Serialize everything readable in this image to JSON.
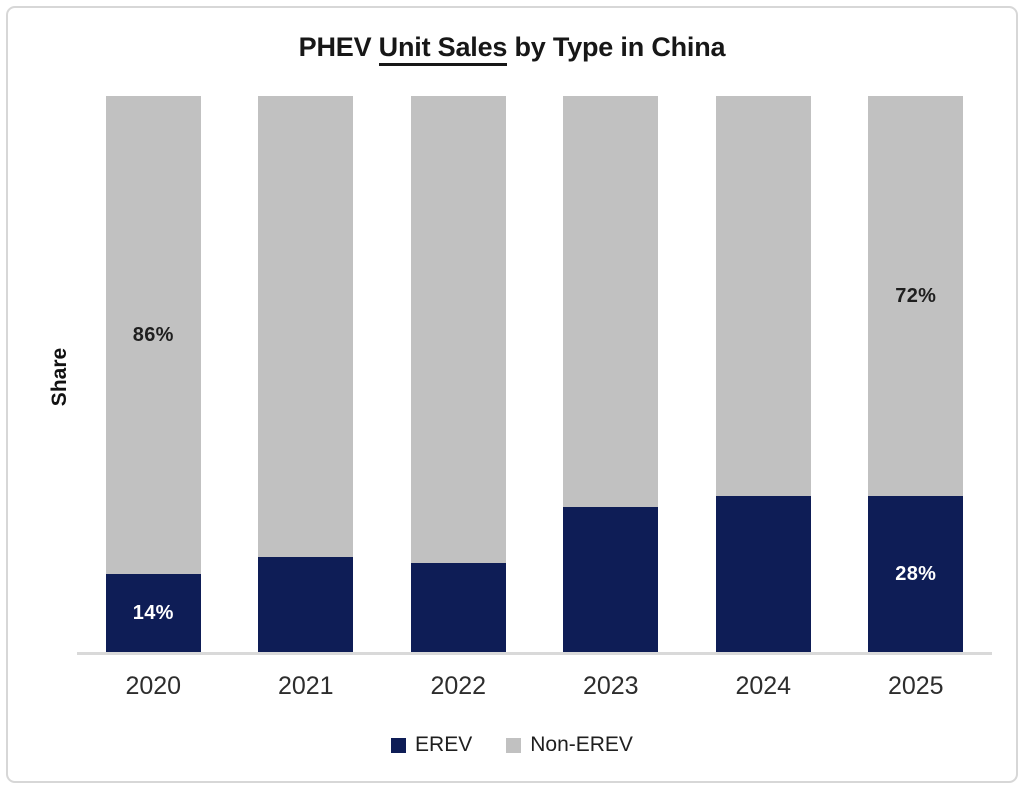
{
  "title": {
    "pre": "PHEV",
    "underline": "Unit Sales",
    "post": "by Type in China"
  },
  "chart_data": {
    "type": "bar",
    "stacked": true,
    "title": "PHEV Unit Sales by Type in China",
    "title_underlined_part": "Unit Sales",
    "categories": [
      "2020",
      "2021",
      "2022",
      "2023",
      "2024",
      "2025"
    ],
    "series": [
      {
        "name": "EREV",
        "color": "#0e1d56",
        "label_color": "#ffffff",
        "values": [
          14,
          17,
          16,
          26,
          28,
          28
        ],
        "labels": [
          "14%",
          "",
          "",
          "",
          "",
          "28%"
        ]
      },
      {
        "name": "Non-EREV",
        "color": "#c1c1c1",
        "label_color": "#1f1f1f",
        "values": [
          86,
          83,
          84,
          74,
          72,
          72
        ],
        "labels": [
          "86%",
          "",
          "",
          "",
          "",
          "72%"
        ]
      }
    ],
    "xlabel": "",
    "ylabel": "Share",
    "ylim": [
      0,
      100
    ],
    "y_tick_labels_visible": false,
    "grid": false,
    "legend_position": "bottom"
  },
  "colors": {
    "background": "#ffffff",
    "frame_border": "#d7d7d7",
    "axis_line": "#d9d9d9",
    "title_text": "#171717",
    "category_text": "#2d2d2d",
    "legend_text": "#1f1f1f",
    "erev_navy": "#0e1d56",
    "non_erev_gray": "#c1c1c1"
  }
}
